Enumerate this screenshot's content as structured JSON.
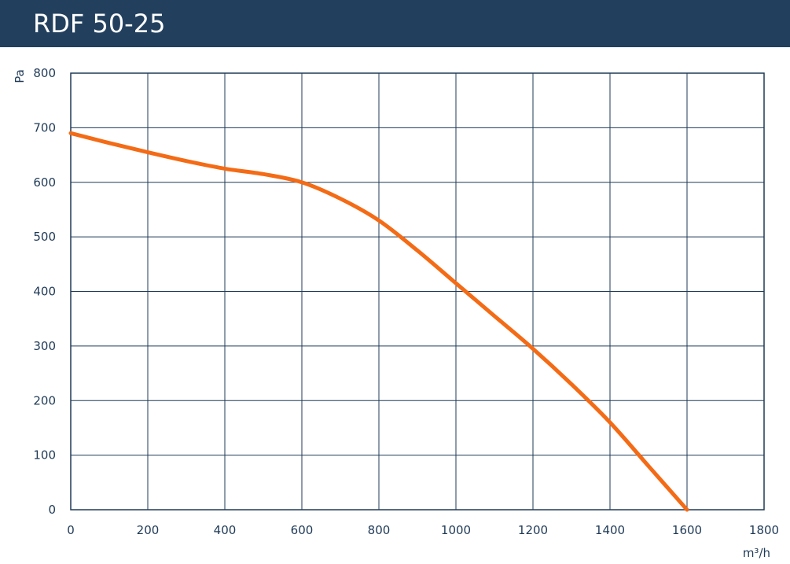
{
  "header": {
    "title": "RDF 50-25"
  },
  "colors": {
    "header_bg": "#22405e",
    "grid": "#1f3a57",
    "curve": "#f46b16",
    "text": "#1f3a57"
  },
  "chart_data": {
    "type": "line",
    "title": "RDF 50-25",
    "xlabel": "m³/h",
    "ylabel": "Pa",
    "xlim": [
      0,
      1800
    ],
    "ylim": [
      0,
      800
    ],
    "xticks": [
      0,
      200,
      400,
      600,
      800,
      1000,
      1200,
      1400,
      1600,
      1800
    ],
    "yticks": [
      0,
      100,
      200,
      300,
      400,
      500,
      600,
      700,
      800
    ],
    "grid": true,
    "legend": "none",
    "series": [
      {
        "x": [
          0,
          100,
          200,
          300,
          400,
          500,
          600,
          700,
          800,
          900,
          1000,
          1100,
          1200,
          1300,
          1400,
          1500,
          1600
        ],
        "y": [
          690,
          672,
          655,
          639,
          625,
          615,
          600,
          570,
          530,
          475,
          415,
          355,
          295,
          230,
          160,
          80,
          0
        ]
      }
    ]
  }
}
